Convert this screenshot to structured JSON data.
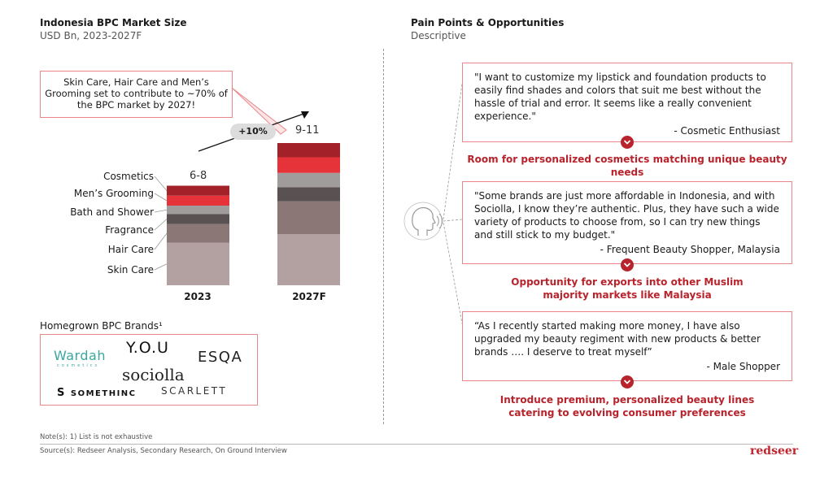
{
  "left": {
    "title": "Indonesia BPC Market Size",
    "subtitle": "USD Bn, 2023-2027F",
    "callout": "Skin Care, Hair Care and Men’s Grooming set to contribute to ~70% of the BPC market by 2027!",
    "cagr": "+10%",
    "brands_title": "Homegrown BPC Brands¹",
    "brands": {
      "wardah": "Wardah",
      "wardah_sub": "cosmetics",
      "you": "Y.O.U",
      "esqa": "ESQA",
      "sociolla": "sociolla",
      "somethinc": "SOMETHINC",
      "scarlett": "SCARLETT"
    }
  },
  "chart_data": {
    "type": "bar",
    "stacked": true,
    "title": "Indonesia BPC Market Size",
    "subtitle": "USD Bn, 2023-2027F",
    "categories": [
      "2023",
      "2027F"
    ],
    "totals": [
      "6-8",
      "9-11"
    ],
    "series": [
      {
        "name": "Skin Care",
        "color": "#b3a1a1",
        "values": [
          3.0,
          3.6
        ]
      },
      {
        "name": "Hair Care",
        "color": "#8c7777",
        "values": [
          1.3,
          2.3
        ]
      },
      {
        "name": "Fragrance",
        "color": "#5a5252",
        "values": [
          0.7,
          1.0
        ]
      },
      {
        "name": "Bath and Shower",
        "color": "#a09c9c",
        "values": [
          0.6,
          1.0
        ]
      },
      {
        "name": "Men’s Grooming",
        "color": "#e63339",
        "values": [
          0.7,
          1.1
        ]
      },
      {
        "name": "Cosmetics",
        "color": "#a3222a",
        "values": [
          0.7,
          1.0
        ]
      }
    ],
    "ylim": [
      0,
      11
    ]
  },
  "right": {
    "title": "Pain Points & Opportunities",
    "subtitle": "Descriptive",
    "quotes": [
      {
        "text": "\"I want to customize my lipstick and foundation products to easily find shades and colors that suit me best without the hassle of trial and error. It seems like a really convenient experience.\"",
        "author": "- Cosmetic Enthusiast",
        "opportunity": "Room for personalized cosmetics matching unique beauty needs"
      },
      {
        "text": "\"Some brands are just more affordable in Indonesia, and with Sociolla, I know they’re authentic. Plus, they have such a wide variety of products to choose from, so I can try new things and still stick to my budget.\"",
        "author": "- Frequent Beauty Shopper, Malaysia",
        "opportunity": "Opportunity for exports into other Muslim majority markets like Malaysia"
      },
      {
        "text": "“As I recently started making more money, I have also upgraded my beauty regiment with new products & better brands …. I deserve to treat myself”",
        "author": "- Male Shopper",
        "opportunity": "Introduce premium, personalized beauty lines catering to evolving consumer preferences"
      }
    ]
  },
  "footer": {
    "note": "Note(s): 1) List is not exhaustive",
    "source": "Source(s): Redseer Analysis, Secondary Research, On Ground Interview",
    "logo": "redseer"
  }
}
